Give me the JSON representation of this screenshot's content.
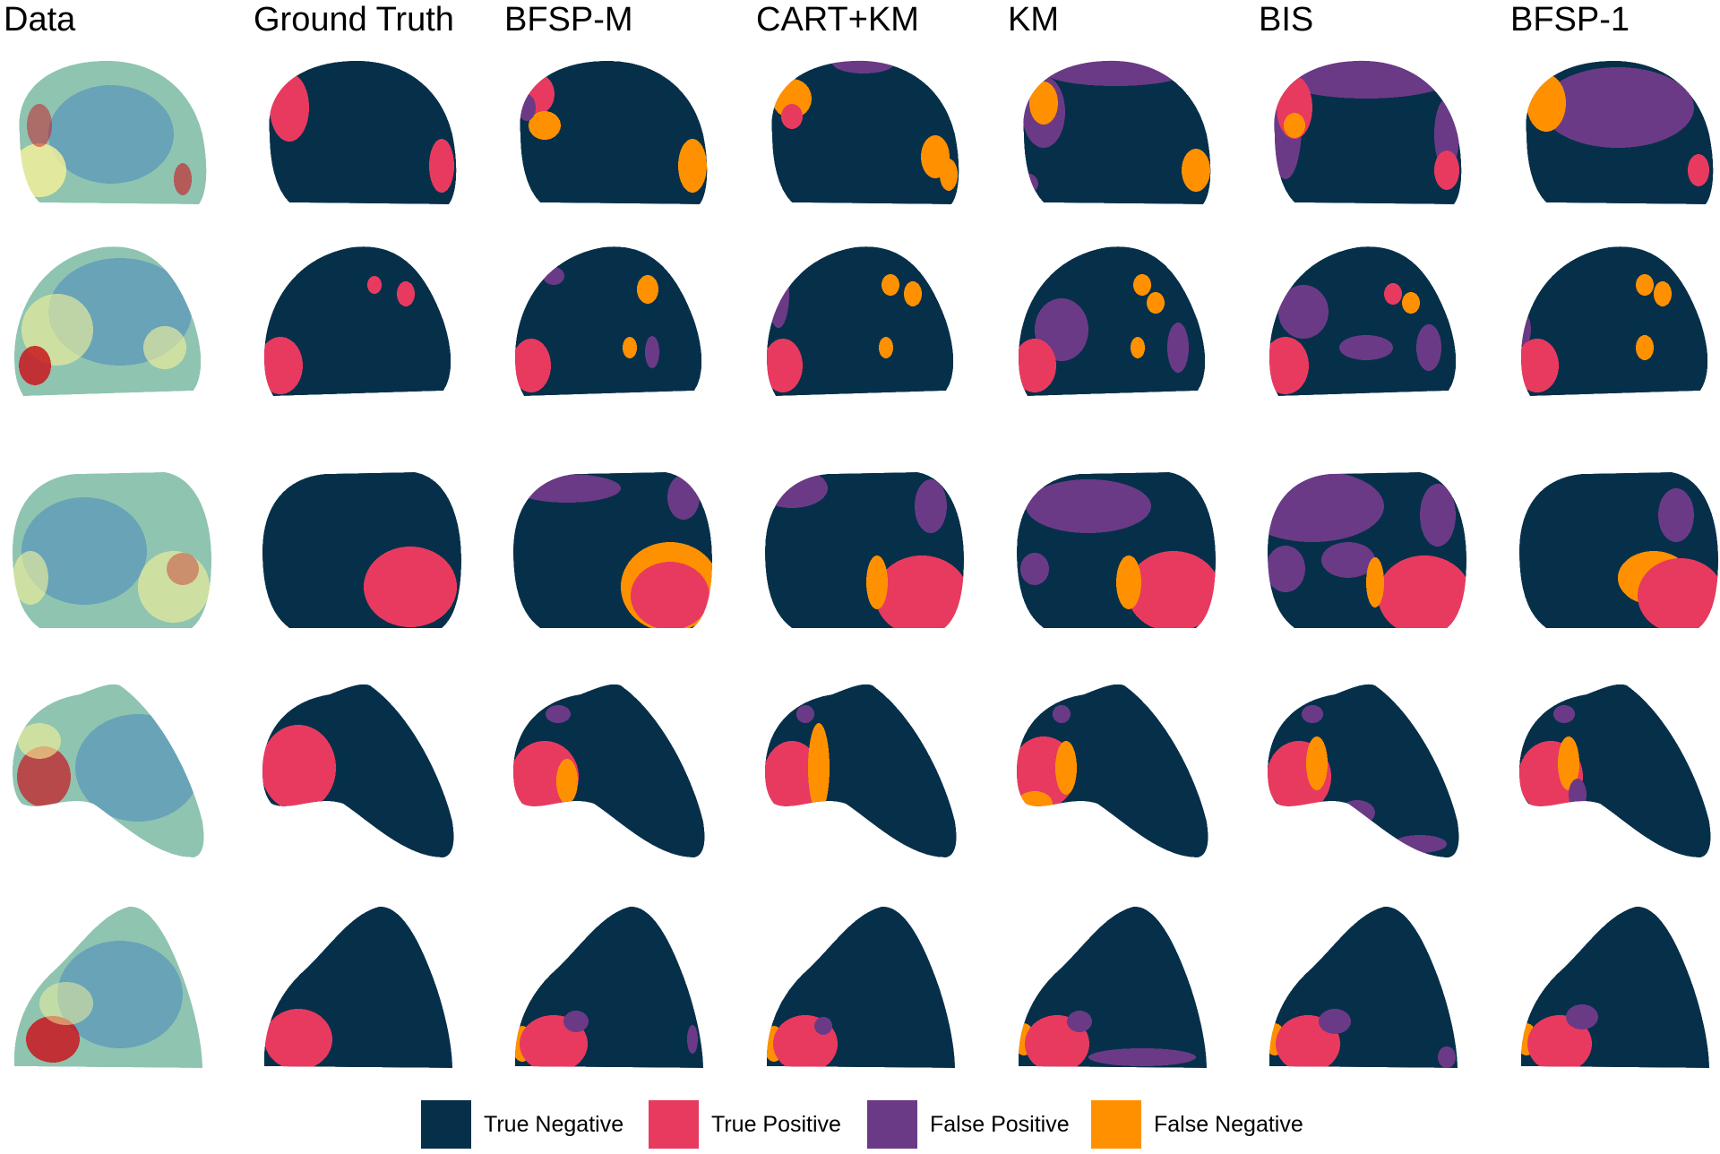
{
  "columns": [
    {
      "label": "Data"
    },
    {
      "label": "Ground Truth"
    },
    {
      "label": "BFSP-M"
    },
    {
      "label": "CART+KM"
    },
    {
      "label": "KM"
    },
    {
      "label": "BIS"
    },
    {
      "label": "BFSP-1"
    }
  ],
  "legend": [
    {
      "label": "True Negative",
      "color": "#06304a"
    },
    {
      "label": "True Positive",
      "color": "#e83a5f"
    },
    {
      "label": "False Positive",
      "color": "#6b3a86"
    },
    {
      "label": "False Negative",
      "color": "#ff9100"
    }
  ],
  "colors": {
    "true_negative": "#06304a",
    "true_positive": "#e83a5f",
    "false_positive": "#6b3a86",
    "false_negative": "#ff9100",
    "data_low": "#4a88c0",
    "data_mid": "#f6f39a",
    "data_high": "#c9161f"
  }
}
